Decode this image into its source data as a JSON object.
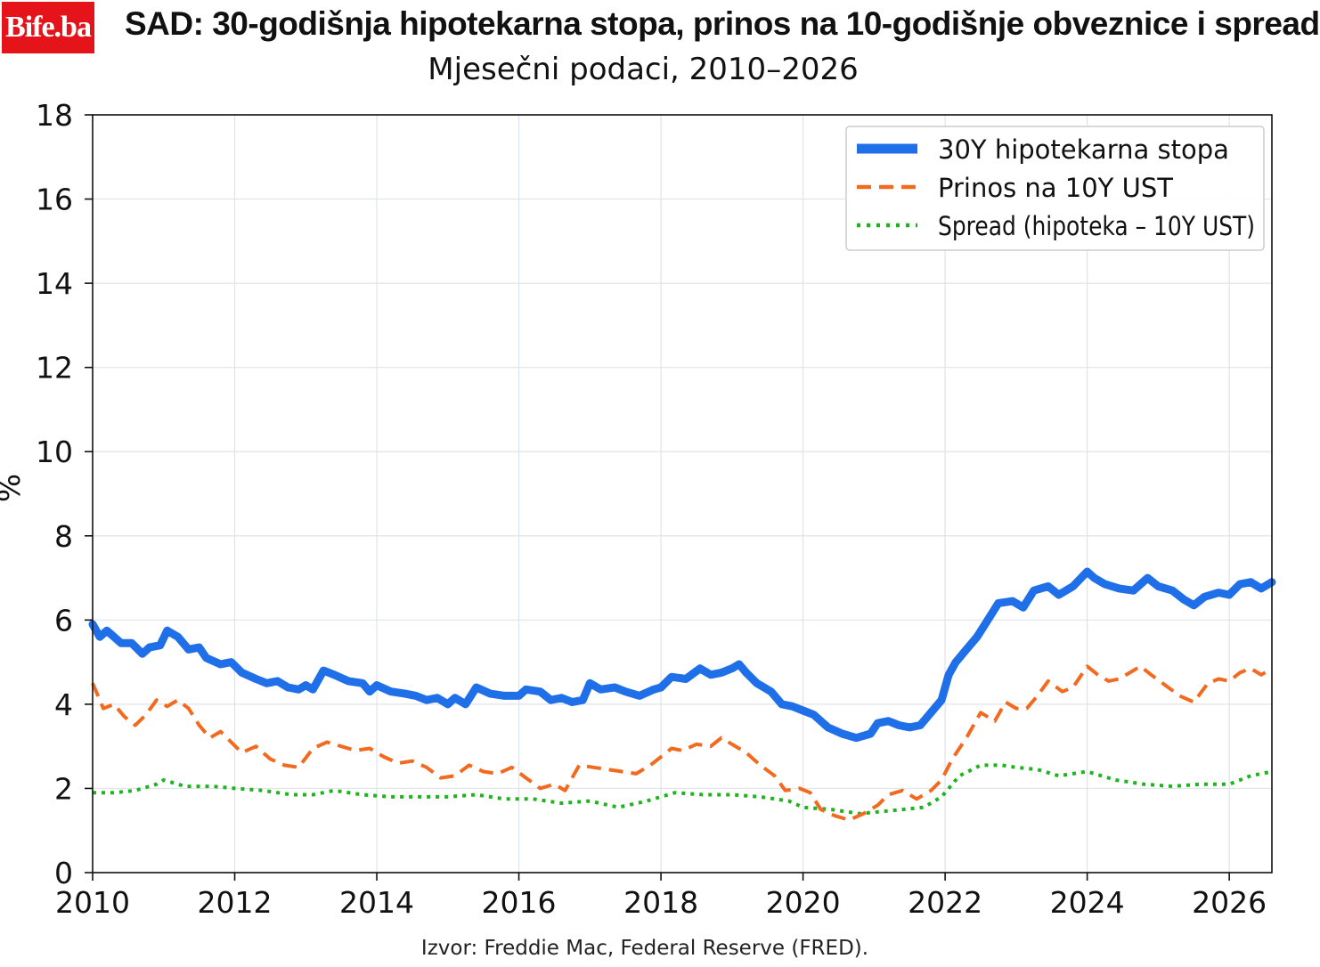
{
  "brand": {
    "logo_text": "Bife.ba",
    "logo_color": "#e5141b"
  },
  "chart_data": {
    "type": "line",
    "title": "SAD: 30-godišnja hipotekarna stopa, prinos na 10-godišnje obveznice i spread",
    "subtitle": "Mjesečni podaci, 2010–2026",
    "xlabel": "",
    "ylabel": "%",
    "xlim": [
      2010,
      2026.6
    ],
    "ylim": [
      0,
      18
    ],
    "xticks": [
      2010,
      2012,
      2014,
      2016,
      2018,
      2020,
      2022,
      2024,
      2026
    ],
    "yticks": [
      0,
      2,
      4,
      6,
      8,
      10,
      12,
      14,
      16,
      18
    ],
    "grid": true,
    "legend_position": "top-right",
    "source": "Izvor: Freddie Mac, Federal Reserve (FRED).",
    "series": [
      {
        "name": "30Y hipotekarna stopa",
        "color": "#1f6fe8",
        "style": "solid",
        "points": [
          [
            2010.0,
            5.9
          ],
          [
            2010.1,
            5.6
          ],
          [
            2010.2,
            5.75
          ],
          [
            2010.4,
            5.45
          ],
          [
            2010.55,
            5.45
          ],
          [
            2010.7,
            5.2
          ],
          [
            2010.8,
            5.35
          ],
          [
            2010.95,
            5.4
          ],
          [
            2011.05,
            5.75
          ],
          [
            2011.2,
            5.6
          ],
          [
            2011.35,
            5.3
          ],
          [
            2011.5,
            5.35
          ],
          [
            2011.6,
            5.1
          ],
          [
            2011.8,
            4.95
          ],
          [
            2011.95,
            5.0
          ],
          [
            2012.1,
            4.75
          ],
          [
            2012.3,
            4.6
          ],
          [
            2012.45,
            4.5
          ],
          [
            2012.6,
            4.55
          ],
          [
            2012.75,
            4.4
          ],
          [
            2012.9,
            4.35
          ],
          [
            2013.0,
            4.45
          ],
          [
            2013.1,
            4.35
          ],
          [
            2013.25,
            4.8
          ],
          [
            2013.4,
            4.7
          ],
          [
            2013.6,
            4.55
          ],
          [
            2013.8,
            4.5
          ],
          [
            2013.9,
            4.3
          ],
          [
            2014.0,
            4.45
          ],
          [
            2014.2,
            4.3
          ],
          [
            2014.4,
            4.25
          ],
          [
            2014.55,
            4.2
          ],
          [
            2014.7,
            4.1
          ],
          [
            2014.85,
            4.15
          ],
          [
            2015.0,
            4.0
          ],
          [
            2015.1,
            4.15
          ],
          [
            2015.25,
            4.0
          ],
          [
            2015.4,
            4.4
          ],
          [
            2015.6,
            4.25
          ],
          [
            2015.8,
            4.2
          ],
          [
            2016.0,
            4.2
          ],
          [
            2016.1,
            4.35
          ],
          [
            2016.3,
            4.3
          ],
          [
            2016.45,
            4.1
          ],
          [
            2016.6,
            4.15
          ],
          [
            2016.75,
            4.05
          ],
          [
            2016.9,
            4.1
          ],
          [
            2017.0,
            4.5
          ],
          [
            2017.15,
            4.35
          ],
          [
            2017.35,
            4.4
          ],
          [
            2017.5,
            4.3
          ],
          [
            2017.7,
            4.2
          ],
          [
            2017.9,
            4.35
          ],
          [
            2018.0,
            4.4
          ],
          [
            2018.15,
            4.65
          ],
          [
            2018.35,
            4.6
          ],
          [
            2018.55,
            4.85
          ],
          [
            2018.7,
            4.7
          ],
          [
            2018.85,
            4.75
          ],
          [
            2019.0,
            4.85
          ],
          [
            2019.1,
            4.95
          ],
          [
            2019.2,
            4.75
          ],
          [
            2019.35,
            4.5
          ],
          [
            2019.55,
            4.3
          ],
          [
            2019.7,
            4.0
          ],
          [
            2019.85,
            3.95
          ],
          [
            2020.0,
            3.85
          ],
          [
            2020.15,
            3.75
          ],
          [
            2020.35,
            3.45
          ],
          [
            2020.55,
            3.3
          ],
          [
            2020.75,
            3.2
          ],
          [
            2020.95,
            3.3
          ],
          [
            2021.05,
            3.55
          ],
          [
            2021.2,
            3.6
          ],
          [
            2021.35,
            3.5
          ],
          [
            2021.5,
            3.45
          ],
          [
            2021.65,
            3.5
          ],
          [
            2021.8,
            3.8
          ],
          [
            2021.95,
            4.1
          ],
          [
            2022.05,
            4.7
          ],
          [
            2022.15,
            5.0
          ],
          [
            2022.3,
            5.3
          ],
          [
            2022.45,
            5.6
          ],
          [
            2022.6,
            6.0
          ],
          [
            2022.75,
            6.4
          ],
          [
            2022.95,
            6.45
          ],
          [
            2023.1,
            6.3
          ],
          [
            2023.25,
            6.7
          ],
          [
            2023.45,
            6.8
          ],
          [
            2023.6,
            6.6
          ],
          [
            2023.8,
            6.8
          ],
          [
            2024.0,
            7.15
          ],
          [
            2024.1,
            7.0
          ],
          [
            2024.25,
            6.85
          ],
          [
            2024.45,
            6.75
          ],
          [
            2024.65,
            6.7
          ],
          [
            2024.85,
            7.0
          ],
          [
            2025.0,
            6.8
          ],
          [
            2025.2,
            6.7
          ],
          [
            2025.35,
            6.5
          ],
          [
            2025.5,
            6.35
          ],
          [
            2025.65,
            6.55
          ],
          [
            2025.85,
            6.65
          ],
          [
            2026.0,
            6.6
          ],
          [
            2026.15,
            6.85
          ],
          [
            2026.3,
            6.9
          ],
          [
            2026.45,
            6.75
          ],
          [
            2026.6,
            6.9
          ]
        ]
      },
      {
        "name": "Prinos na 10Y UST",
        "color": "#f26a1f",
        "style": "dashed",
        "points": [
          [
            2010.0,
            4.5
          ],
          [
            2010.15,
            3.9
          ],
          [
            2010.3,
            4.0
          ],
          [
            2010.45,
            3.7
          ],
          [
            2010.6,
            3.5
          ],
          [
            2010.75,
            3.75
          ],
          [
            2010.9,
            4.1
          ],
          [
            2011.05,
            3.95
          ],
          [
            2011.2,
            4.1
          ],
          [
            2011.35,
            3.9
          ],
          [
            2011.5,
            3.5
          ],
          [
            2011.65,
            3.2
          ],
          [
            2011.8,
            3.35
          ],
          [
            2011.95,
            3.1
          ],
          [
            2012.1,
            2.85
          ],
          [
            2012.3,
            3.0
          ],
          [
            2012.5,
            2.7
          ],
          [
            2012.7,
            2.55
          ],
          [
            2012.9,
            2.5
          ],
          [
            2013.1,
            2.95
          ],
          [
            2013.3,
            3.1
          ],
          [
            2013.5,
            3.0
          ],
          [
            2013.7,
            2.9
          ],
          [
            2013.9,
            2.95
          ],
          [
            2014.1,
            2.75
          ],
          [
            2014.3,
            2.6
          ],
          [
            2014.5,
            2.65
          ],
          [
            2014.7,
            2.5
          ],
          [
            2014.9,
            2.25
          ],
          [
            2015.1,
            2.3
          ],
          [
            2015.3,
            2.55
          ],
          [
            2015.5,
            2.4
          ],
          [
            2015.7,
            2.35
          ],
          [
            2015.9,
            2.5
          ],
          [
            2016.1,
            2.25
          ],
          [
            2016.3,
            2.0
          ],
          [
            2016.5,
            2.1
          ],
          [
            2016.65,
            1.95
          ],
          [
            2016.85,
            2.55
          ],
          [
            2017.05,
            2.5
          ],
          [
            2017.25,
            2.45
          ],
          [
            2017.45,
            2.4
          ],
          [
            2017.65,
            2.35
          ],
          [
            2017.85,
            2.55
          ],
          [
            2018.0,
            2.75
          ],
          [
            2018.15,
            2.95
          ],
          [
            2018.3,
            2.9
          ],
          [
            2018.5,
            3.05
          ],
          [
            2018.7,
            3.0
          ],
          [
            2018.85,
            3.2
          ],
          [
            2019.0,
            3.05
          ],
          [
            2019.2,
            2.85
          ],
          [
            2019.4,
            2.55
          ],
          [
            2019.6,
            2.3
          ],
          [
            2019.75,
            1.95
          ],
          [
            2019.95,
            2.0
          ],
          [
            2020.1,
            1.9
          ],
          [
            2020.25,
            1.5
          ],
          [
            2020.45,
            1.35
          ],
          [
            2020.65,
            1.25
          ],
          [
            2020.85,
            1.4
          ],
          [
            2021.05,
            1.6
          ],
          [
            2021.2,
            1.85
          ],
          [
            2021.4,
            1.95
          ],
          [
            2021.6,
            1.75
          ],
          [
            2021.8,
            1.95
          ],
          [
            2021.95,
            2.2
          ],
          [
            2022.1,
            2.7
          ],
          [
            2022.3,
            3.2
          ],
          [
            2022.5,
            3.8
          ],
          [
            2022.7,
            3.6
          ],
          [
            2022.85,
            4.05
          ],
          [
            2023.0,
            3.9
          ],
          [
            2023.15,
            3.9
          ],
          [
            2023.3,
            4.2
          ],
          [
            2023.45,
            4.55
          ],
          [
            2023.65,
            4.3
          ],
          [
            2023.8,
            4.4
          ],
          [
            2024.0,
            4.9
          ],
          [
            2024.15,
            4.7
          ],
          [
            2024.3,
            4.55
          ],
          [
            2024.45,
            4.6
          ],
          [
            2024.6,
            4.75
          ],
          [
            2024.75,
            4.9
          ],
          [
            2024.9,
            4.7
          ],
          [
            2025.1,
            4.45
          ],
          [
            2025.3,
            4.2
          ],
          [
            2025.5,
            4.05
          ],
          [
            2025.7,
            4.5
          ],
          [
            2025.85,
            4.6
          ],
          [
            2026.0,
            4.55
          ],
          [
            2026.15,
            4.75
          ],
          [
            2026.3,
            4.85
          ],
          [
            2026.45,
            4.7
          ],
          [
            2026.6,
            4.85
          ]
        ]
      },
      {
        "name": "Spread (hipoteka – 10Y UST)",
        "color": "#1fb41f",
        "style": "dotted",
        "points": [
          [
            2010.0,
            1.9
          ],
          [
            2010.3,
            1.9
          ],
          [
            2010.6,
            1.95
          ],
          [
            2010.9,
            2.1
          ],
          [
            2011.0,
            2.2
          ],
          [
            2011.3,
            2.05
          ],
          [
            2011.7,
            2.05
          ],
          [
            2012.0,
            2.0
          ],
          [
            2012.4,
            1.95
          ],
          [
            2012.8,
            1.85
          ],
          [
            2013.1,
            1.85
          ],
          [
            2013.4,
            1.95
          ],
          [
            2013.8,
            1.85
          ],
          [
            2014.2,
            1.8
          ],
          [
            2014.6,
            1.8
          ],
          [
            2015.0,
            1.8
          ],
          [
            2015.4,
            1.85
          ],
          [
            2015.8,
            1.75
          ],
          [
            2016.2,
            1.75
          ],
          [
            2016.6,
            1.65
          ],
          [
            2017.0,
            1.7
          ],
          [
            2017.4,
            1.55
          ],
          [
            2017.8,
            1.7
          ],
          [
            2018.2,
            1.9
          ],
          [
            2018.6,
            1.85
          ],
          [
            2019.0,
            1.85
          ],
          [
            2019.4,
            1.8
          ],
          [
            2019.8,
            1.7
          ],
          [
            2020.0,
            1.55
          ],
          [
            2020.4,
            1.5
          ],
          [
            2020.8,
            1.4
          ],
          [
            2021.1,
            1.45
          ],
          [
            2021.4,
            1.5
          ],
          [
            2021.7,
            1.55
          ],
          [
            2021.95,
            1.8
          ],
          [
            2022.2,
            2.3
          ],
          [
            2022.5,
            2.55
          ],
          [
            2022.8,
            2.55
          ],
          [
            2023.0,
            2.5
          ],
          [
            2023.3,
            2.45
          ],
          [
            2023.6,
            2.3
          ],
          [
            2024.0,
            2.4
          ],
          [
            2024.4,
            2.2
          ],
          [
            2024.8,
            2.1
          ],
          [
            2025.2,
            2.05
          ],
          [
            2025.6,
            2.1
          ],
          [
            2026.0,
            2.1
          ],
          [
            2026.3,
            2.3
          ],
          [
            2026.6,
            2.4
          ]
        ]
      }
    ]
  }
}
